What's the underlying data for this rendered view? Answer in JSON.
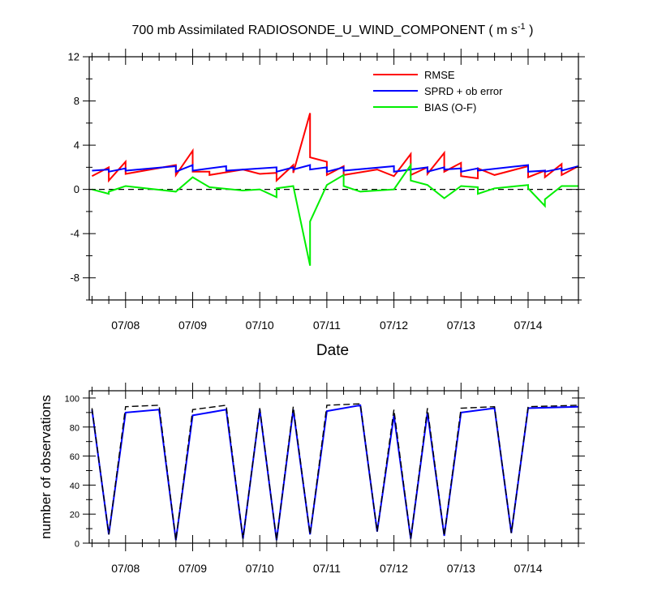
{
  "chart_data": [
    {
      "type": "line",
      "title": "700 mb Assimilated RADIOSONDE_U_WIND_COMPONENT ( m s",
      "title_superscript": "-1",
      "title_close": " )",
      "xlabel": "Date",
      "ylabel": "",
      "xlim": [
        "07/07 11:00",
        "07/14 18:00"
      ],
      "ylim": [
        -10,
        12
      ],
      "yticks": [
        "-8",
        "-4",
        "0",
        "4",
        "8",
        "12"
      ],
      "xtick_labels": [
        "07/08",
        "07/09",
        "07/10",
        "07/11",
        "07/12",
        "07/13",
        "07/14"
      ],
      "legend_position": "top-right",
      "zero_line": {
        "value": 0,
        "style": "dashed",
        "color": "#000000"
      },
      "series": [
        {
          "name": "RMSE",
          "color": "#ff0000",
          "points": [
            [
              "07/07 12:00",
              1.2
            ],
            [
              "07/07 18:00",
              2.0
            ],
            [
              "07/07 18:00",
              0.8
            ],
            [
              "07/08 00:00",
              2.5
            ],
            [
              "07/08 00:00",
              1.4
            ],
            [
              "07/08 18:00",
              2.2
            ],
            [
              "07/08 18:00",
              1.3
            ],
            [
              "07/09 00:00",
              3.5
            ],
            [
              "07/09 00:00",
              1.6
            ],
            [
              "07/09 06:00",
              1.6
            ],
            [
              "07/09 06:00",
              1.3
            ],
            [
              "07/09 18:00",
              1.8
            ],
            [
              "07/10 00:00",
              1.4
            ],
            [
              "07/10 06:00",
              1.5
            ],
            [
              "07/10 06:00",
              0.8
            ],
            [
              "07/10 12:00",
              2.2
            ],
            [
              "07/10 12:00",
              1.5
            ],
            [
              "07/10 18:00",
              6.9
            ],
            [
              "07/10 18:00",
              2.9
            ],
            [
              "07/11 00:00",
              2.5
            ],
            [
              "07/11 00:00",
              1.3
            ],
            [
              "07/11 06:00",
              2.1
            ],
            [
              "07/11 06:00",
              1.3
            ],
            [
              "07/11 18:00",
              1.8
            ],
            [
              "07/12 00:00",
              1.2
            ],
            [
              "07/12 06:00",
              3.2
            ],
            [
              "07/12 06:00",
              1.3
            ],
            [
              "07/12 12:00",
              2.0
            ],
            [
              "07/12 12:00",
              1.4
            ],
            [
              "07/12 18:00",
              3.3
            ],
            [
              "07/12 18:00",
              1.6
            ],
            [
              "07/13 00:00",
              2.4
            ],
            [
              "07/13 00:00",
              1.2
            ],
            [
              "07/13 06:00",
              1.0
            ],
            [
              "07/13 06:00",
              1.9
            ],
            [
              "07/13 12:00",
              1.3
            ],
            [
              "07/14 00:00",
              2.1
            ],
            [
              "07/14 00:00",
              1.1
            ],
            [
              "07/14 06:00",
              1.7
            ],
            [
              "07/14 06:00",
              1.1
            ],
            [
              "07/14 12:00",
              2.3
            ],
            [
              "07/14 12:00",
              1.3
            ],
            [
              "07/14 18:00",
              2.1
            ]
          ]
        },
        {
          "name": "SPRD + ob error",
          "color": "#0000ff",
          "points": [
            [
              "07/07 12:00",
              1.7
            ],
            [
              "07/07 18:00",
              1.8
            ],
            [
              "07/07 18:00",
              1.6
            ],
            [
              "07/08 00:00",
              1.9
            ],
            [
              "07/08 00:00",
              1.7
            ],
            [
              "07/08 18:00",
              2.1
            ],
            [
              "07/08 18:00",
              1.6
            ],
            [
              "07/09 00:00",
              2.2
            ],
            [
              "07/09 00:00",
              1.7
            ],
            [
              "07/09 12:00",
              2.1
            ],
            [
              "07/09 12:00",
              1.7
            ],
            [
              "07/10 06:00",
              2.0
            ],
            [
              "07/10 06:00",
              1.6
            ],
            [
              "07/10 12:00",
              2.0
            ],
            [
              "07/10 12:00",
              1.8
            ],
            [
              "07/10 18:00",
              2.2
            ],
            [
              "07/10 18:00",
              1.8
            ],
            [
              "07/11 00:00",
              2.0
            ],
            [
              "07/11 00:00",
              1.6
            ],
            [
              "07/11 06:00",
              2.0
            ],
            [
              "07/11 06:00",
              1.7
            ],
            [
              "07/12 00:00",
              2.1
            ],
            [
              "07/12 00:00",
              1.6
            ],
            [
              "07/12 12:00",
              2.0
            ],
            [
              "07/12 12:00",
              1.6
            ],
            [
              "07/12 18:00",
              2.0
            ],
            [
              "07/12 18:00",
              1.8
            ],
            [
              "07/13 00:00",
              1.9
            ],
            [
              "07/13 00:00",
              1.6
            ],
            [
              "07/13 06:00",
              1.9
            ],
            [
              "07/13 06:00",
              1.7
            ],
            [
              "07/14 00:00",
              2.2
            ],
            [
              "07/14 00:00",
              1.6
            ],
            [
              "07/14 06:00",
              1.7
            ],
            [
              "07/14 06:00",
              1.6
            ],
            [
              "07/14 12:00",
              1.9
            ],
            [
              "07/14 12:00",
              1.7
            ],
            [
              "07/14 18:00",
              2.1
            ]
          ]
        },
        {
          "name": "BIAS (O-F)",
          "color": "#00ee00",
          "points": [
            [
              "07/07 12:00",
              0.0
            ],
            [
              "07/07 18:00",
              -0.4
            ],
            [
              "07/07 18:00",
              -0.2
            ],
            [
              "07/08 00:00",
              0.3
            ],
            [
              "07/08 18:00",
              -0.2
            ],
            [
              "07/09 00:00",
              1.1
            ],
            [
              "07/09 06:00",
              0.2
            ],
            [
              "07/09 18:00",
              -0.1
            ],
            [
              "07/10 00:00",
              0.0
            ],
            [
              "07/10 06:00",
              -0.7
            ],
            [
              "07/10 06:00",
              0.1
            ],
            [
              "07/10 12:00",
              0.3
            ],
            [
              "07/10 18:00",
              -6.9
            ],
            [
              "07/10 18:00",
              -2.9
            ],
            [
              "07/11 00:00",
              0.4
            ],
            [
              "07/11 06:00",
              1.3
            ],
            [
              "07/11 06:00",
              0.3
            ],
            [
              "07/11 12:00",
              -0.2
            ],
            [
              "07/12 00:00",
              0.0
            ],
            [
              "07/12 06:00",
              2.2
            ],
            [
              "07/12 06:00",
              0.8
            ],
            [
              "07/12 12:00",
              0.4
            ],
            [
              "07/12 18:00",
              -0.8
            ],
            [
              "07/13 00:00",
              0.3
            ],
            [
              "07/13 06:00",
              0.2
            ],
            [
              "07/13 06:00",
              -0.4
            ],
            [
              "07/13 12:00",
              0.1
            ],
            [
              "07/14 00:00",
              0.4
            ],
            [
              "07/14 00:00",
              0.1
            ],
            [
              "07/14 06:00",
              -1.5
            ],
            [
              "07/14 06:00",
              -0.9
            ],
            [
              "07/14 12:00",
              0.3
            ],
            [
              "07/14 18:00",
              0.3
            ]
          ]
        }
      ]
    },
    {
      "type": "line",
      "title": "",
      "xlabel": "",
      "ylabel": "number of observations",
      "xlim": [
        "07/07 11:00",
        "07/14 18:00"
      ],
      "ylim": [
        0,
        105
      ],
      "yticks": [
        "0",
        "20",
        "40",
        "60",
        "80",
        "100"
      ],
      "xtick_labels": [
        "07/08",
        "07/09",
        "07/10",
        "07/11",
        "07/12",
        "07/13",
        "07/14"
      ],
      "series": [
        {
          "name": "",
          "color": "#0000ff",
          "style": "solid",
          "points": [
            [
              "07/07 12:00",
              92
            ],
            [
              "07/07 18:00",
              6
            ],
            [
              "07/08 00:00",
              90
            ],
            [
              "07/08 12:00",
              92
            ],
            [
              "07/08 18:00",
              2
            ],
            [
              "07/09 00:00",
              88
            ],
            [
              "07/09 12:00",
              92
            ],
            [
              "07/09 18:00",
              3
            ],
            [
              "07/10 00:00",
              92
            ],
            [
              "07/10 06:00",
              2
            ],
            [
              "07/10 12:00",
              92
            ],
            [
              "07/10 18:00",
              6
            ],
            [
              "07/11 00:00",
              91
            ],
            [
              "07/11 12:00",
              95
            ],
            [
              "07/11 18:00",
              8
            ],
            [
              "07/12 00:00",
              88
            ],
            [
              "07/12 06:00",
              3
            ],
            [
              "07/12 12:00",
              90
            ],
            [
              "07/12 18:00",
              5
            ],
            [
              "07/13 00:00",
              90
            ],
            [
              "07/13 12:00",
              93
            ],
            [
              "07/13 18:00",
              7
            ],
            [
              "07/14 00:00",
              93
            ],
            [
              "07/14 18:00",
              94
            ]
          ]
        },
        {
          "name": "",
          "color": "#000000",
          "style": "dashed",
          "points": [
            [
              "07/07 12:00",
              93
            ],
            [
              "07/07 18:00",
              6
            ],
            [
              "07/08 00:00",
              94
            ],
            [
              "07/08 12:00",
              95
            ],
            [
              "07/08 18:00",
              2
            ],
            [
              "07/09 00:00",
              92
            ],
            [
              "07/09 12:00",
              95
            ],
            [
              "07/09 18:00",
              3
            ],
            [
              "07/10 00:00",
              93
            ],
            [
              "07/10 06:00",
              2
            ],
            [
              "07/10 12:00",
              94
            ],
            [
              "07/10 18:00",
              6
            ],
            [
              "07/11 00:00",
              95
            ],
            [
              "07/11 12:00",
              96
            ],
            [
              "07/11 18:00",
              8
            ],
            [
              "07/12 00:00",
              92
            ],
            [
              "07/12 06:00",
              3
            ],
            [
              "07/12 12:00",
              93
            ],
            [
              "07/12 18:00",
              5
            ],
            [
              "07/13 00:00",
              93
            ],
            [
              "07/13 12:00",
              94
            ],
            [
              "07/13 18:00",
              7
            ],
            [
              "07/14 00:00",
              94
            ],
            [
              "07/14 18:00",
              95
            ]
          ]
        }
      ]
    }
  ]
}
